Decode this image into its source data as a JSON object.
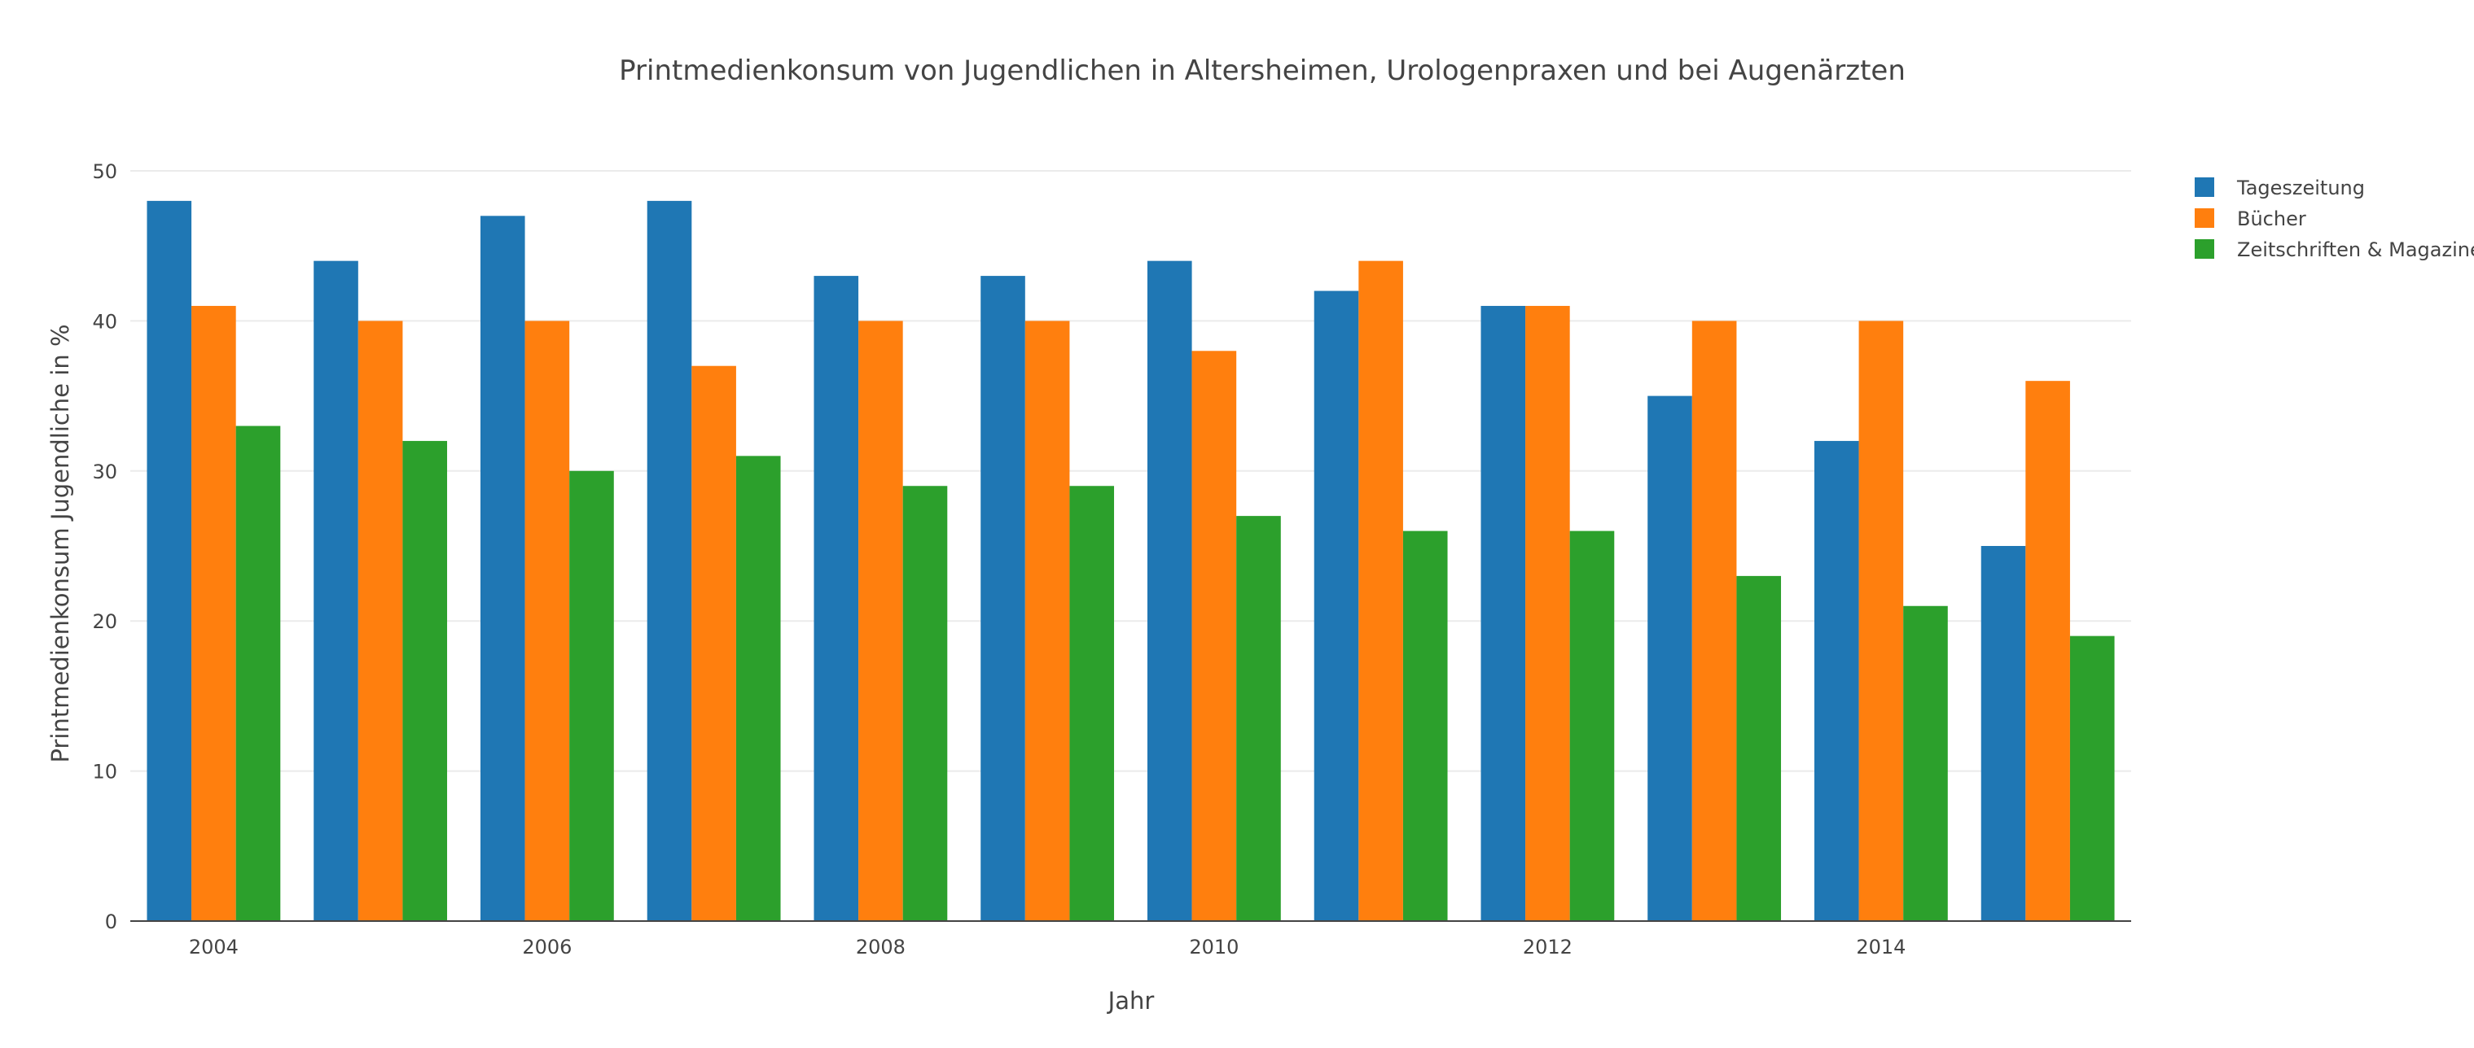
{
  "chart_data": {
    "type": "bar",
    "title": "Printmedienkonsum von Jugendlichen in Altersheimen, Urologenpraxen und bei Augenärzten",
    "xlabel": "Jahr",
    "ylabel": "Printmedienkonsum Jugendliche in %",
    "x": [
      2004,
      2005,
      2006,
      2007,
      2008,
      2009,
      2010,
      2011,
      2012,
      2013,
      2014,
      2015
    ],
    "xtick_labels": [
      "2004",
      "2006",
      "2008",
      "2010",
      "2012",
      "2014"
    ],
    "xtick_values": [
      2004,
      2006,
      2008,
      2010,
      2012,
      2014
    ],
    "ylim": [
      0,
      50
    ],
    "yticks": [
      0,
      10,
      20,
      30,
      40,
      50
    ],
    "grid": true,
    "legend_position": "top-right",
    "series": [
      {
        "name": "Tageszeitung",
        "color": "#1f77b4",
        "values": [
          48,
          44,
          47,
          48,
          43,
          43,
          44,
          42,
          41,
          35,
          32,
          25
        ]
      },
      {
        "name": "Bücher",
        "color": "#ff7f0e",
        "values": [
          41,
          40,
          40,
          37,
          40,
          40,
          38,
          44,
          41,
          40,
          40,
          36
        ]
      },
      {
        "name": "Zeitschriften & Magazine",
        "color": "#2ca02c",
        "values": [
          33,
          32,
          30,
          31,
          29,
          29,
          27,
          26,
          26,
          23,
          21,
          19
        ]
      }
    ]
  }
}
